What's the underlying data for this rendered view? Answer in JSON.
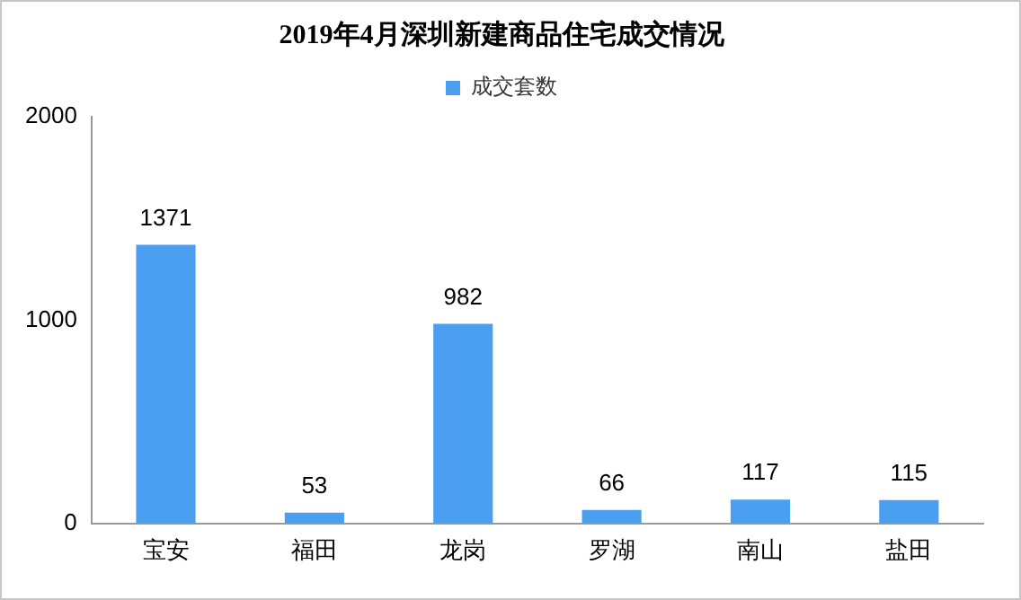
{
  "chart_data": {
    "type": "bar",
    "title": "2019年4月深圳新建商品住宅成交情况",
    "categories": [
      "宝安",
      "福田",
      "龙岗",
      "罗湖",
      "南山",
      "盐田"
    ],
    "series": [
      {
        "name": "成交套数",
        "color": "#4a9ff0",
        "values": [
          1371,
          53,
          982,
          66,
          117,
          115
        ]
      }
    ],
    "ylim": [
      0,
      2000
    ],
    "yticks": [
      0,
      1000,
      2000
    ],
    "grid": false,
    "legend": "top",
    "data_labels": true
  }
}
